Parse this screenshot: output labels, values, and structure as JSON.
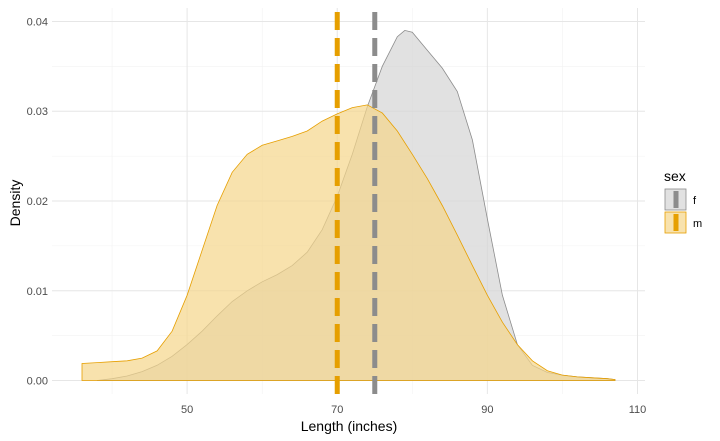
{
  "chart_data": {
    "type": "area",
    "title": "",
    "xlabel": "Length (inches)",
    "ylabel": "Density",
    "xlim": [
      32,
      111
    ],
    "ylim": [
      -0.0015,
      0.0415
    ],
    "x_ticks": [
      50,
      70,
      90,
      110
    ],
    "x_tick_labels": [
      "50",
      "70",
      "90",
      "110"
    ],
    "y_ticks": [
      0,
      0.01,
      0.02,
      0.03,
      0.04
    ],
    "y_tick_labels": [
      "0.00",
      "0.01",
      "0.02",
      "0.03",
      "0.04"
    ],
    "grid": true,
    "legend": {
      "title": "sex",
      "position": "right",
      "entries": [
        "f",
        "m"
      ]
    },
    "series": [
      {
        "name": "f",
        "fill": "#d4d4d4",
        "line": "#8c8c8c",
        "mean": 75,
        "points": [
          [
            38,
            0
          ],
          [
            40,
            0.0002
          ],
          [
            42,
            0.0005
          ],
          [
            44,
            0.001
          ],
          [
            46,
            0.0017
          ],
          [
            48,
            0.0027
          ],
          [
            50,
            0.004
          ],
          [
            52,
            0.0055
          ],
          [
            54,
            0.0072
          ],
          [
            56,
            0.0088
          ],
          [
            58,
            0.01
          ],
          [
            60,
            0.011
          ],
          [
            62,
            0.0118
          ],
          [
            64,
            0.0128
          ],
          [
            66,
            0.0143
          ],
          [
            68,
            0.0168
          ],
          [
            70,
            0.0205
          ],
          [
            72,
            0.0252
          ],
          [
            74,
            0.0305
          ],
          [
            76,
            0.035
          ],
          [
            78,
            0.0383
          ],
          [
            79,
            0.039
          ],
          [
            80,
            0.0388
          ],
          [
            82,
            0.0368
          ],
          [
            84,
            0.0348
          ],
          [
            86,
            0.0322
          ],
          [
            88,
            0.0268
          ],
          [
            90,
            0.018
          ],
          [
            92,
            0.0095
          ],
          [
            94,
            0.004
          ],
          [
            96,
            0.0017
          ],
          [
            98,
            0.0009
          ],
          [
            100,
            0.0006
          ],
          [
            102,
            0.0004
          ],
          [
            104,
            0.0003
          ],
          [
            106,
            0.0002
          ],
          [
            107,
            0.0001
          ]
        ]
      },
      {
        "name": "m",
        "fill": "#f5d68a",
        "line": "#e69f00",
        "mean": 70,
        "points": [
          [
            36,
            0.0019
          ],
          [
            38,
            0.002
          ],
          [
            40,
            0.0021
          ],
          [
            42,
            0.0022
          ],
          [
            44,
            0.0025
          ],
          [
            46,
            0.0033
          ],
          [
            48,
            0.0055
          ],
          [
            50,
            0.0095
          ],
          [
            52,
            0.0145
          ],
          [
            54,
            0.0195
          ],
          [
            56,
            0.0232
          ],
          [
            58,
            0.0252
          ],
          [
            60,
            0.0262
          ],
          [
            62,
            0.0267
          ],
          [
            64,
            0.0272
          ],
          [
            66,
            0.0278
          ],
          [
            68,
            0.0289
          ],
          [
            70,
            0.0297
          ],
          [
            72,
            0.0304
          ],
          [
            74,
            0.0307
          ],
          [
            76,
            0.0298
          ],
          [
            78,
            0.0278
          ],
          [
            80,
            0.0252
          ],
          [
            82,
            0.0225
          ],
          [
            84,
            0.0195
          ],
          [
            86,
            0.0162
          ],
          [
            88,
            0.0128
          ],
          [
            90,
            0.0095
          ],
          [
            92,
            0.0065
          ],
          [
            94,
            0.004
          ],
          [
            96,
            0.0022
          ],
          [
            98,
            0.0011
          ],
          [
            100,
            0.0006
          ],
          [
            102,
            0.0004
          ],
          [
            104,
            0.0003
          ],
          [
            106,
            0.0002
          ],
          [
            107,
            0.0001
          ]
        ]
      }
    ]
  }
}
